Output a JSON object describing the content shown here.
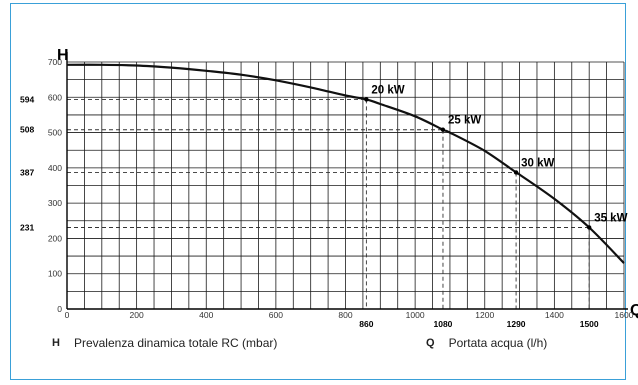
{
  "chart_data": {
    "type": "line",
    "x_axis_letter": "Q",
    "y_axis_letter": "H",
    "xlim": [
      0,
      1600
    ],
    "ylim": [
      0,
      700
    ],
    "grid": true,
    "x_major_ticks": [
      0,
      200,
      400,
      600,
      800,
      1000,
      1200,
      1400,
      1600
    ],
    "y_major_ticks": [
      0,
      100,
      200,
      300,
      400,
      500,
      600,
      700
    ],
    "x_grid_step": 50,
    "y_grid_step": 50,
    "curve": {
      "x": [
        0,
        100,
        200,
        300,
        400,
        500,
        600,
        700,
        800,
        860,
        900,
        1000,
        1080,
        1100,
        1200,
        1290,
        1300,
        1400,
        1500,
        1600
      ],
      "y": [
        692,
        692,
        690,
        684,
        675,
        664,
        648,
        628,
        605,
        594,
        581,
        546,
        508,
        500,
        448,
        387,
        381,
        312,
        231,
        130
      ]
    },
    "operating_points": [
      {
        "label": "20 kW",
        "q": 860,
        "h": 594,
        "q_label": "860",
        "h_label": "594"
      },
      {
        "label": "25 kW",
        "q": 1080,
        "h": 508,
        "q_label": "1080",
        "h_label": "508"
      },
      {
        "label": "30 kW",
        "q": 1290,
        "h": 387,
        "q_label": "1290",
        "h_label": "387"
      },
      {
        "label": "35 kW",
        "q": 1500,
        "h": 231,
        "q_label": "1500",
        "h_label": "231"
      }
    ],
    "legend": [
      {
        "key": "H",
        "text": "Prevalenza dinamica totale RC (mbar)"
      },
      {
        "key": "Q",
        "text": "Portata acqua (l/h)"
      }
    ]
  }
}
